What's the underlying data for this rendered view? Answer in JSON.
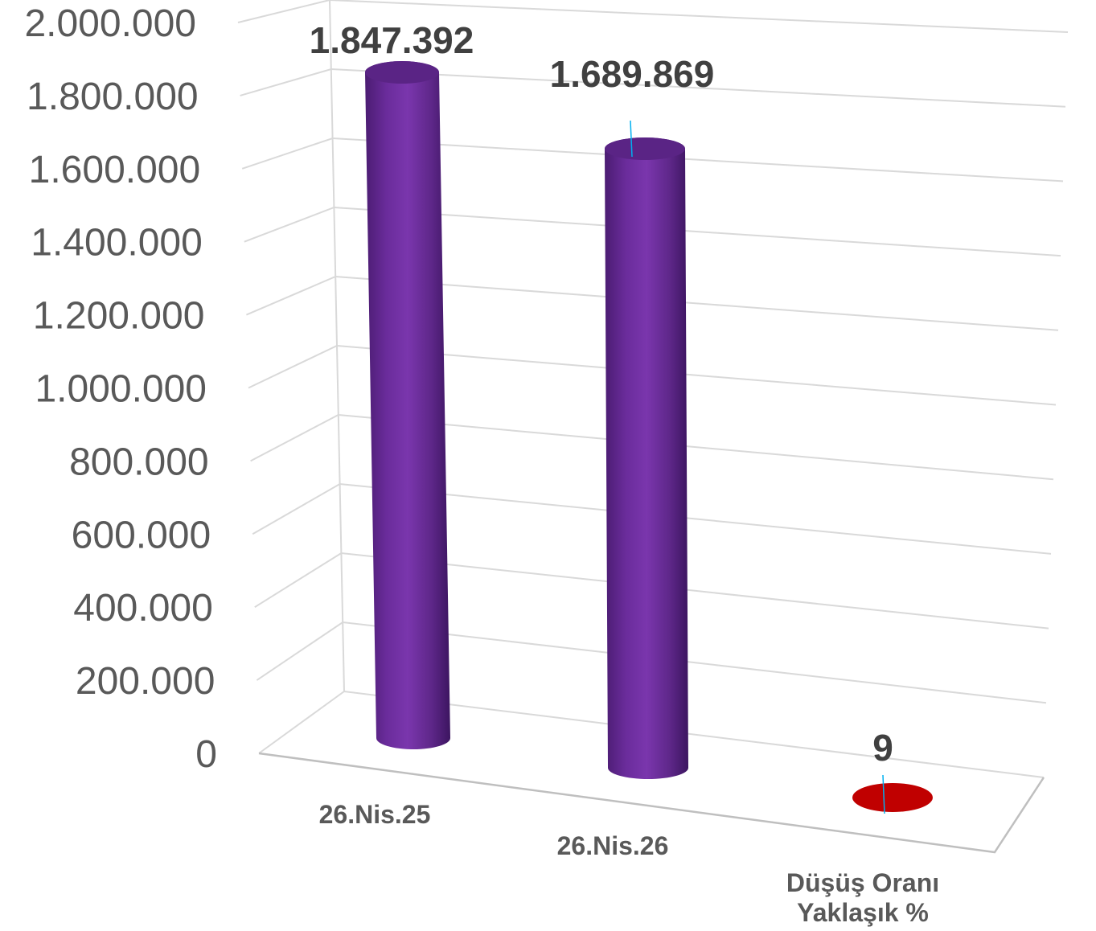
{
  "chart_data": {
    "type": "bar",
    "style": "3d-cylinder",
    "categories": [
      [
        "26.Nis.25"
      ],
      [
        "26.Nis.26"
      ],
      [
        "Düşüş Oranı",
        "Yaklaşık %"
      ]
    ],
    "values": [
      1847392,
      1689869,
      9
    ],
    "data_labels": [
      "1.847.392",
      "1.689.869",
      "9"
    ],
    "yticks": [
      "0",
      "200.000",
      "400.000",
      "600.000",
      "800.000",
      "1.000.000",
      "1.200.000",
      "1.400.000",
      "1.600.000",
      "1.800.000",
      "2.000.000"
    ],
    "ylim": [
      0,
      2000000
    ],
    "grid": true,
    "legend": "none",
    "colors": {
      "bars": [
        "#7030a0",
        "#7030a0",
        "#c00000"
      ],
      "grid": "#d9d9d9",
      "leader": "#00b0f0"
    }
  }
}
